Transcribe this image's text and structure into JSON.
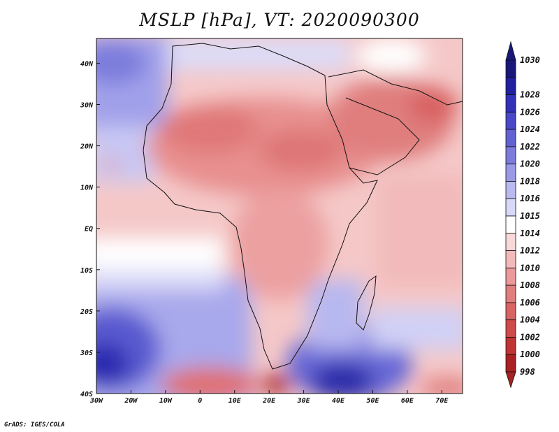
{
  "title": "MSLP [hPa], VT: 2020090300",
  "credit": "GrADS: IGES/COLA",
  "map": {
    "lon_range": [
      -30,
      76
    ],
    "lat_range": [
      -40,
      46
    ],
    "lat_labels": [
      {
        "lat": 40,
        "text": "40N"
      },
      {
        "lat": 30,
        "text": "30N"
      },
      {
        "lat": 20,
        "text": "20N"
      },
      {
        "lat": 10,
        "text": "10N"
      },
      {
        "lat": 0,
        "text": "EQ"
      },
      {
        "lat": -10,
        "text": "10S"
      },
      {
        "lat": -20,
        "text": "20S"
      },
      {
        "lat": -30,
        "text": "30S"
      },
      {
        "lat": -40,
        "text": "40S"
      }
    ],
    "lon_labels": [
      {
        "lon": -30,
        "text": "30W"
      },
      {
        "lon": -20,
        "text": "20W"
      },
      {
        "lon": -10,
        "text": "10W"
      },
      {
        "lon": 0,
        "text": "0"
      },
      {
        "lon": 10,
        "text": "10E"
      },
      {
        "lon": 20,
        "text": "20E"
      },
      {
        "lon": 30,
        "text": "30E"
      },
      {
        "lon": 40,
        "text": "40E"
      },
      {
        "lon": 50,
        "text": "50E"
      },
      {
        "lon": 60,
        "text": "60E"
      },
      {
        "lon": 70,
        "text": "70E"
      }
    ]
  },
  "colorbar": {
    "levels": [
      {
        "label": "1030",
        "color": "#18187a"
      },
      {
        "label": "1028",
        "color": "#2020a0"
      },
      {
        "label": "1026",
        "color": "#3232b8"
      },
      {
        "label": "1024",
        "color": "#4848c8"
      },
      {
        "label": "1022",
        "color": "#6262d2"
      },
      {
        "label": "1020",
        "color": "#7c7cdc"
      },
      {
        "label": "1018",
        "color": "#9a9ae6"
      },
      {
        "label": "1016",
        "color": "#babaf0"
      },
      {
        "label": "1015",
        "color": "#d8d8f8"
      },
      {
        "label": "1014",
        "color": "#ffffff"
      },
      {
        "label": "1012",
        "color": "#f8d8d8"
      },
      {
        "label": "1010",
        "color": "#f2baba"
      },
      {
        "label": "1008",
        "color": "#ea9a9a"
      },
      {
        "label": "1006",
        "color": "#e07e7e"
      },
      {
        "label": "1004",
        "color": "#d86464"
      },
      {
        "label": "1002",
        "color": "#cf4a4a"
      },
      {
        "label": "1000",
        "color": "#c03434"
      },
      {
        "label": "998",
        "color": "#a82222"
      }
    ]
  }
}
